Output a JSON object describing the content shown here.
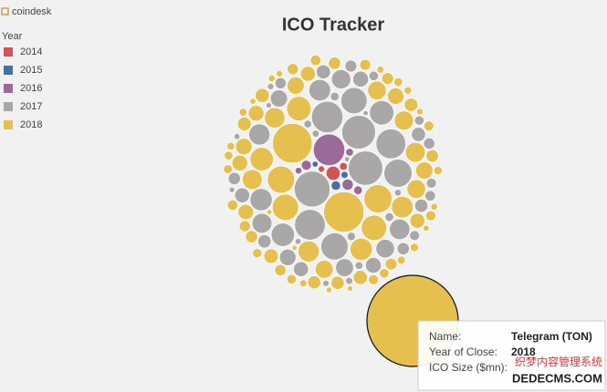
{
  "brand": "coindesk",
  "chart_data": {
    "type": "packed-bubble",
    "title": "ICO Tracker",
    "legend_title": "Year",
    "series": [
      {
        "name": "2014",
        "color": "#d35454",
        "values": [
          40,
          12,
          8
        ]
      },
      {
        "name": "2015",
        "color": "#4a6fa5",
        "values": [
          18,
          10,
          7
        ]
      },
      {
        "name": "2016",
        "color": "#9b6a9b",
        "values": [
          200,
          25,
          20,
          15,
          12,
          9
        ]
      },
      {
        "name": "2017",
        "color": "#aaa7a8",
        "values": [
          260,
          240,
          230,
          200,
          190,
          180,
          160,
          150,
          140,
          120,
          110,
          100,
          95,
          90,
          85,
          80,
          75,
          70,
          65,
          60,
          55,
          50,
          50,
          45,
          45,
          40,
          40,
          35,
          35,
          30,
          30,
          28,
          25,
          25,
          22,
          20,
          20,
          18,
          18,
          15,
          15,
          14,
          12,
          12,
          10,
          10,
          9,
          8,
          8,
          7,
          7,
          6,
          6,
          5,
          5
        ]
      },
      {
        "name": "2018",
        "color": "#e5c04e",
        "values": [
          1700,
          330,
          320,
          160,
          150,
          140,
          130,
          120,
          110,
          100,
          95,
          90,
          85,
          80,
          80,
          75,
          70,
          70,
          65,
          60,
          60,
          55,
          55,
          50,
          50,
          48,
          45,
          45,
          42,
          40,
          40,
          38,
          36,
          35,
          34,
          32,
          30,
          30,
          28,
          28,
          26,
          25,
          25,
          24,
          22,
          22,
          20,
          20,
          20,
          18,
          18,
          17,
          16,
          15,
          15,
          14,
          14,
          13,
          12,
          12,
          11,
          10,
          10,
          9,
          9,
          8,
          8,
          7,
          7,
          6,
          6,
          5,
          5
        ]
      }
    ]
  },
  "tooltip": {
    "name_label": "Name:",
    "name": "Telegram (TON)",
    "year_label": "Year of Close:",
    "year": "2018",
    "size_label": "ICO Size ($mn):"
  },
  "watermark": {
    "line1": "织梦内容管理系统",
    "line2": "DEDECMS.COM"
  }
}
